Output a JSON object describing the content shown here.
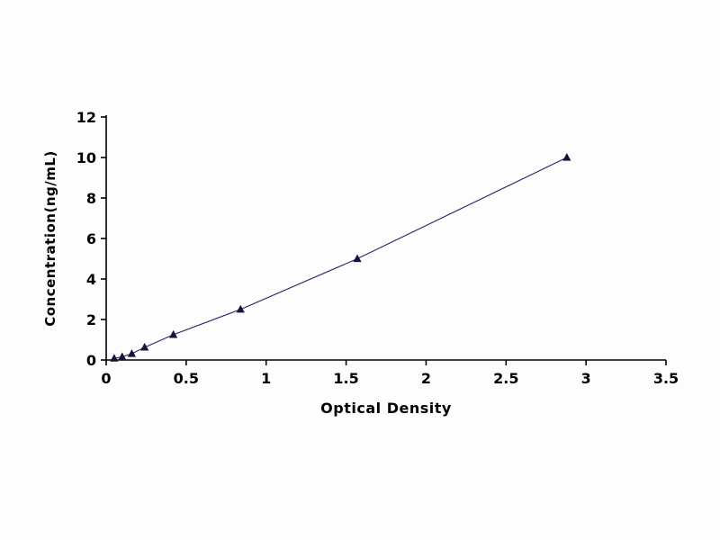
{
  "chart_data": {
    "type": "line",
    "title": "",
    "xlabel": "Optical Density",
    "ylabel": "Concentration(ng/mL)",
    "x": [
      0.05,
      0.1,
      0.16,
      0.24,
      0.42,
      0.84,
      1.57,
      2.88
    ],
    "y": [
      0.08,
      0.156,
      0.312,
      0.625,
      1.25,
      2.5,
      5.0,
      10.0
    ],
    "xlim": [
      0,
      3.5
    ],
    "ylim": [
      0,
      12
    ],
    "xtick_values": [
      0,
      0.5,
      1,
      1.5,
      2,
      2.5,
      3,
      3.5
    ],
    "xtick_labels": [
      "0",
      "0.5",
      "1",
      "1.5",
      "2",
      "2.5",
      "3",
      "3.5"
    ],
    "ytick_values": [
      0,
      2,
      4,
      6,
      8,
      10,
      12
    ],
    "ytick_labels": [
      "0",
      "2",
      "4",
      "6",
      "8",
      "10",
      "12"
    ],
    "grid": false,
    "legend": "none",
    "line_color": "#24246b",
    "marker_color": "#14143c",
    "marker_shape": "triangle-up",
    "axis_color": "#000000",
    "background_color": "#fdfdfd"
  }
}
